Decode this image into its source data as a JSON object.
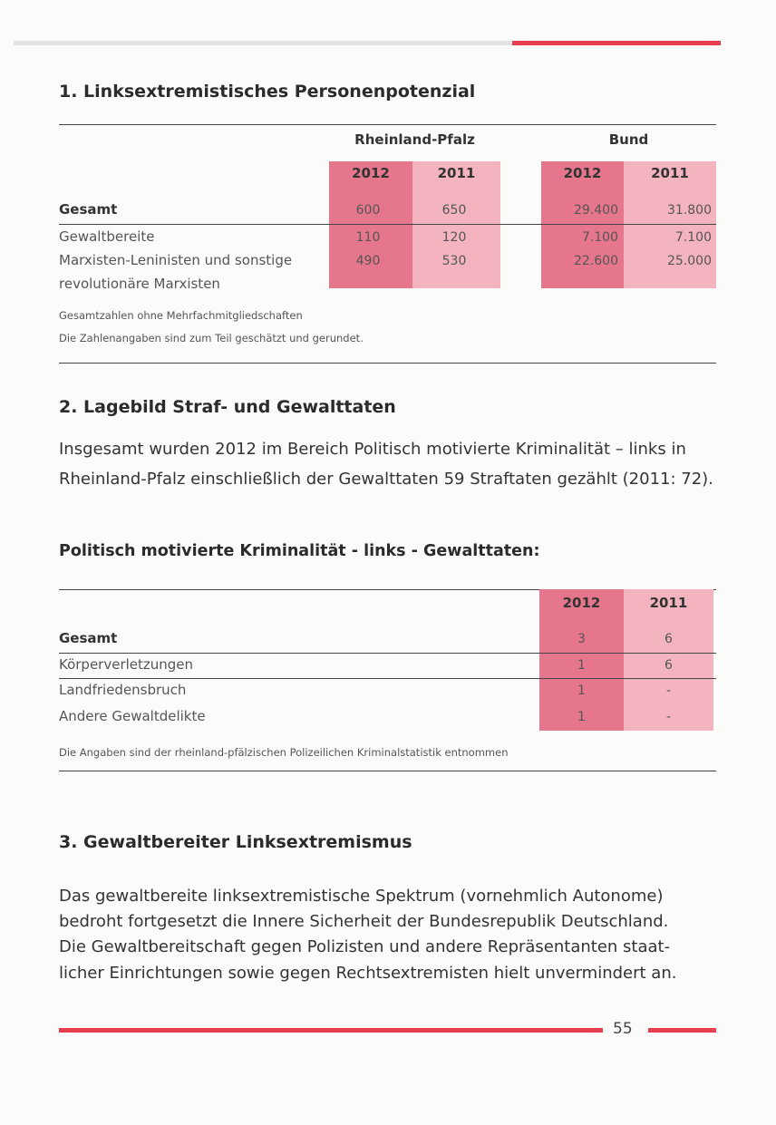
{
  "colors": {
    "accent": "#e63d4f",
    "col2012": "#e6768b",
    "col2011": "#f3b3bf"
  },
  "section1": {
    "title": "1. Linksextremistisches Personenpotenzial",
    "groups": [
      "Rheinland-Pfalz",
      "Bund"
    ],
    "years": [
      "2012",
      "2011"
    ],
    "rows": [
      {
        "label": "Gesamt",
        "values": [
          "600",
          "650",
          "29.400",
          "31.800"
        ]
      },
      {
        "label": "Gewaltbereite",
        "values": [
          "110",
          "120",
          "7.100",
          "7.100"
        ]
      },
      {
        "label": "Marxisten-Leninisten und sonstige",
        "label2": "revolutionäre Marxisten",
        "values": [
          "490",
          "530",
          "22.600",
          "25.000"
        ]
      }
    ],
    "notes": [
      "Gesamtzahlen ohne Mehrfachmitgliedschaften",
      "Die Zahlenangaben sind zum Teil geschätzt und gerundet."
    ]
  },
  "section2": {
    "title": "2. Lagebild Straf- und Gewalttaten",
    "paragraph": [
      "Insgesamt wurden 2012 im Bereich Politisch motivierte Kriminalität – links in",
      "Rheinland-Pfalz einschließlich der Gewalttaten 59 Straftaten gezählt (2011: 72)."
    ],
    "table_title": "Politisch motivierte Kriminalität - links - Gewalttaten:",
    "years": [
      "2012",
      "2011"
    ],
    "rows": [
      {
        "label": "Gesamt",
        "values": [
          "3",
          "6"
        ]
      },
      {
        "label": "Körperverletzungen",
        "values": [
          "1",
          "6"
        ]
      },
      {
        "label": "Landfriedensbruch",
        "values": [
          "1",
          "-"
        ]
      },
      {
        "label": "Andere Gewaltdelikte",
        "values": [
          "1",
          "-"
        ]
      }
    ],
    "note": "Die Angaben sind der rheinland-pfälzischen Polizeilichen Kriminalstatistik entnommen"
  },
  "section3": {
    "title": "3. Gewaltbereiter Linksextremismus",
    "paragraph": [
      "Das gewaltbereite linksextremistische Spektrum (vornehmlich Autonome)",
      "bedroht fortgesetzt die Innere Sicherheit der Bundesrepublik Deutschland.",
      "Die Gewaltbereitschaft gegen Polizisten und andere Repräsentanten staat-",
      "licher Einrichtungen sowie gegen Rechtsextremisten hielt unvermindert an."
    ]
  },
  "footer": {
    "page_number": "55"
  }
}
